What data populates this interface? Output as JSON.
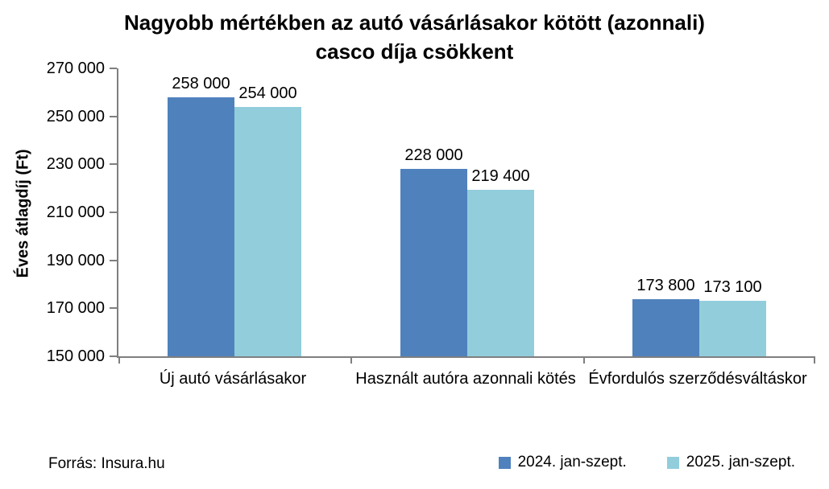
{
  "chart_data": {
    "type": "bar",
    "title": "Nagyobb mértékben az autó vásárlásakor kötött (azonnali) casco díja csökkent",
    "title_lines": [
      "Nagyobb mértékben az autó vásárlásakor kötött (azonnali)",
      "casco díja csökkent"
    ],
    "xlabel": "",
    "ylabel": "Éves átlagdíj (Ft)",
    "ylim": [
      150000,
      270000
    ],
    "ytick_step": 20000,
    "yticks": [
      {
        "value": 150000,
        "label": "150 000"
      },
      {
        "value": 170000,
        "label": "170 000"
      },
      {
        "value": 190000,
        "label": "190 000"
      },
      {
        "value": 210000,
        "label": "210 000"
      },
      {
        "value": 230000,
        "label": "230 000"
      },
      {
        "value": 250000,
        "label": "250 000"
      },
      {
        "value": 270000,
        "label": "270 000"
      }
    ],
    "categories": [
      "Új autó vásárlásakor",
      "Használt autóra azonnali kötés",
      "Évfordulós szerződésváltáskor"
    ],
    "series": [
      {
        "name": "2024. jan-szept.",
        "color": "#4F81BD",
        "values": [
          258000,
          228000,
          173800
        ],
        "value_labels": [
          "258 000",
          "228 000",
          "173 800"
        ]
      },
      {
        "name": "2025. jan-szept.",
        "color": "#92CDDC",
        "values": [
          254000,
          219400,
          173100
        ],
        "value_labels": [
          "254 000",
          "219 400",
          "173 100"
        ]
      }
    ],
    "grid": false,
    "legend_position": "bottom-right"
  },
  "source": {
    "label": "Forrás: Insura.hu"
  },
  "colors": {
    "axis": "#7F7F7F",
    "text": "#000000",
    "series_2024": "#4F81BD",
    "series_2025": "#92CDDC"
  }
}
